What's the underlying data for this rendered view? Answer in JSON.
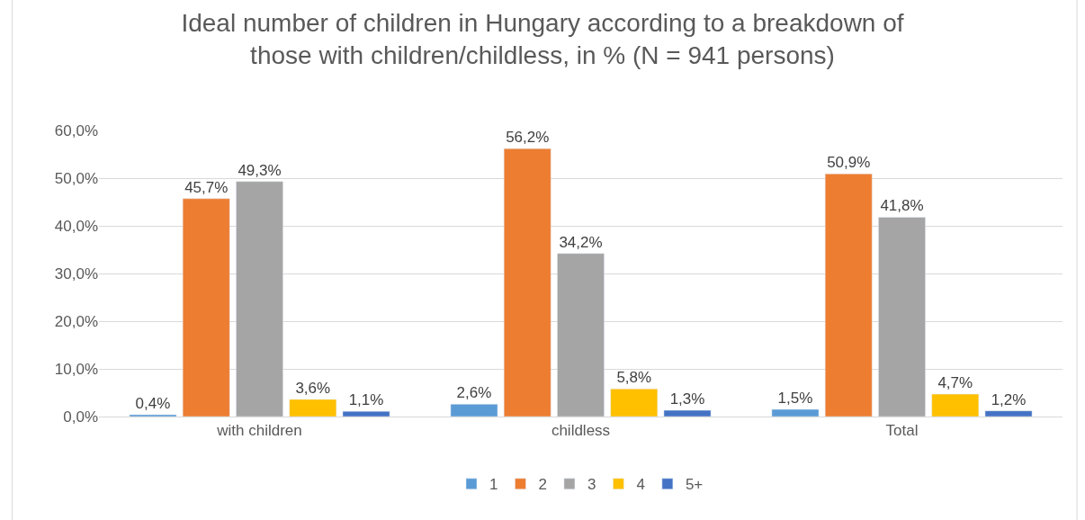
{
  "chart_data": {
    "type": "bar",
    "title": "Ideal number of children in Hungary according to a breakdown of those with children/childless, in % (N = 941 persons)",
    "categories": [
      "with children",
      "childless",
      "Total"
    ],
    "series": [
      {
        "name": "1",
        "color": "#5b9bd5",
        "values": [
          0.4,
          2.6,
          1.5
        ],
        "value_labels": [
          "0,4%",
          "2,6%",
          "1,5%"
        ]
      },
      {
        "name": "2",
        "color": "#ed7d31",
        "values": [
          45.7,
          56.2,
          50.9
        ],
        "value_labels": [
          "45,7%",
          "56,2%",
          "50,9%"
        ]
      },
      {
        "name": "3",
        "color": "#a5a5a5",
        "values": [
          49.3,
          34.2,
          41.8
        ],
        "value_labels": [
          "49,3%",
          "34,2%",
          "41,8%"
        ]
      },
      {
        "name": "4",
        "color": "#ffc000",
        "values": [
          3.6,
          5.8,
          4.7
        ],
        "value_labels": [
          "3,6%",
          "5,8%",
          "4,7%"
        ]
      },
      {
        "name": "5+",
        "color": "#4472c4",
        "values": [
          1.1,
          1.3,
          1.2
        ],
        "value_labels": [
          "1,1%",
          "1,3%",
          "1,2%"
        ]
      }
    ],
    "ylim": [
      0,
      60
    ],
    "yticks": [
      {
        "value": 0,
        "label": "0,0%"
      },
      {
        "value": 10,
        "label": "10,0%"
      },
      {
        "value": 20,
        "label": "20,0%"
      },
      {
        "value": 30,
        "label": "30,0%"
      },
      {
        "value": 40,
        "label": "40,0%"
      },
      {
        "value": 50,
        "label": "50,0%"
      },
      {
        "value": 60,
        "label": "60,0%"
      }
    ],
    "grid": "y",
    "legend": "bottom"
  }
}
